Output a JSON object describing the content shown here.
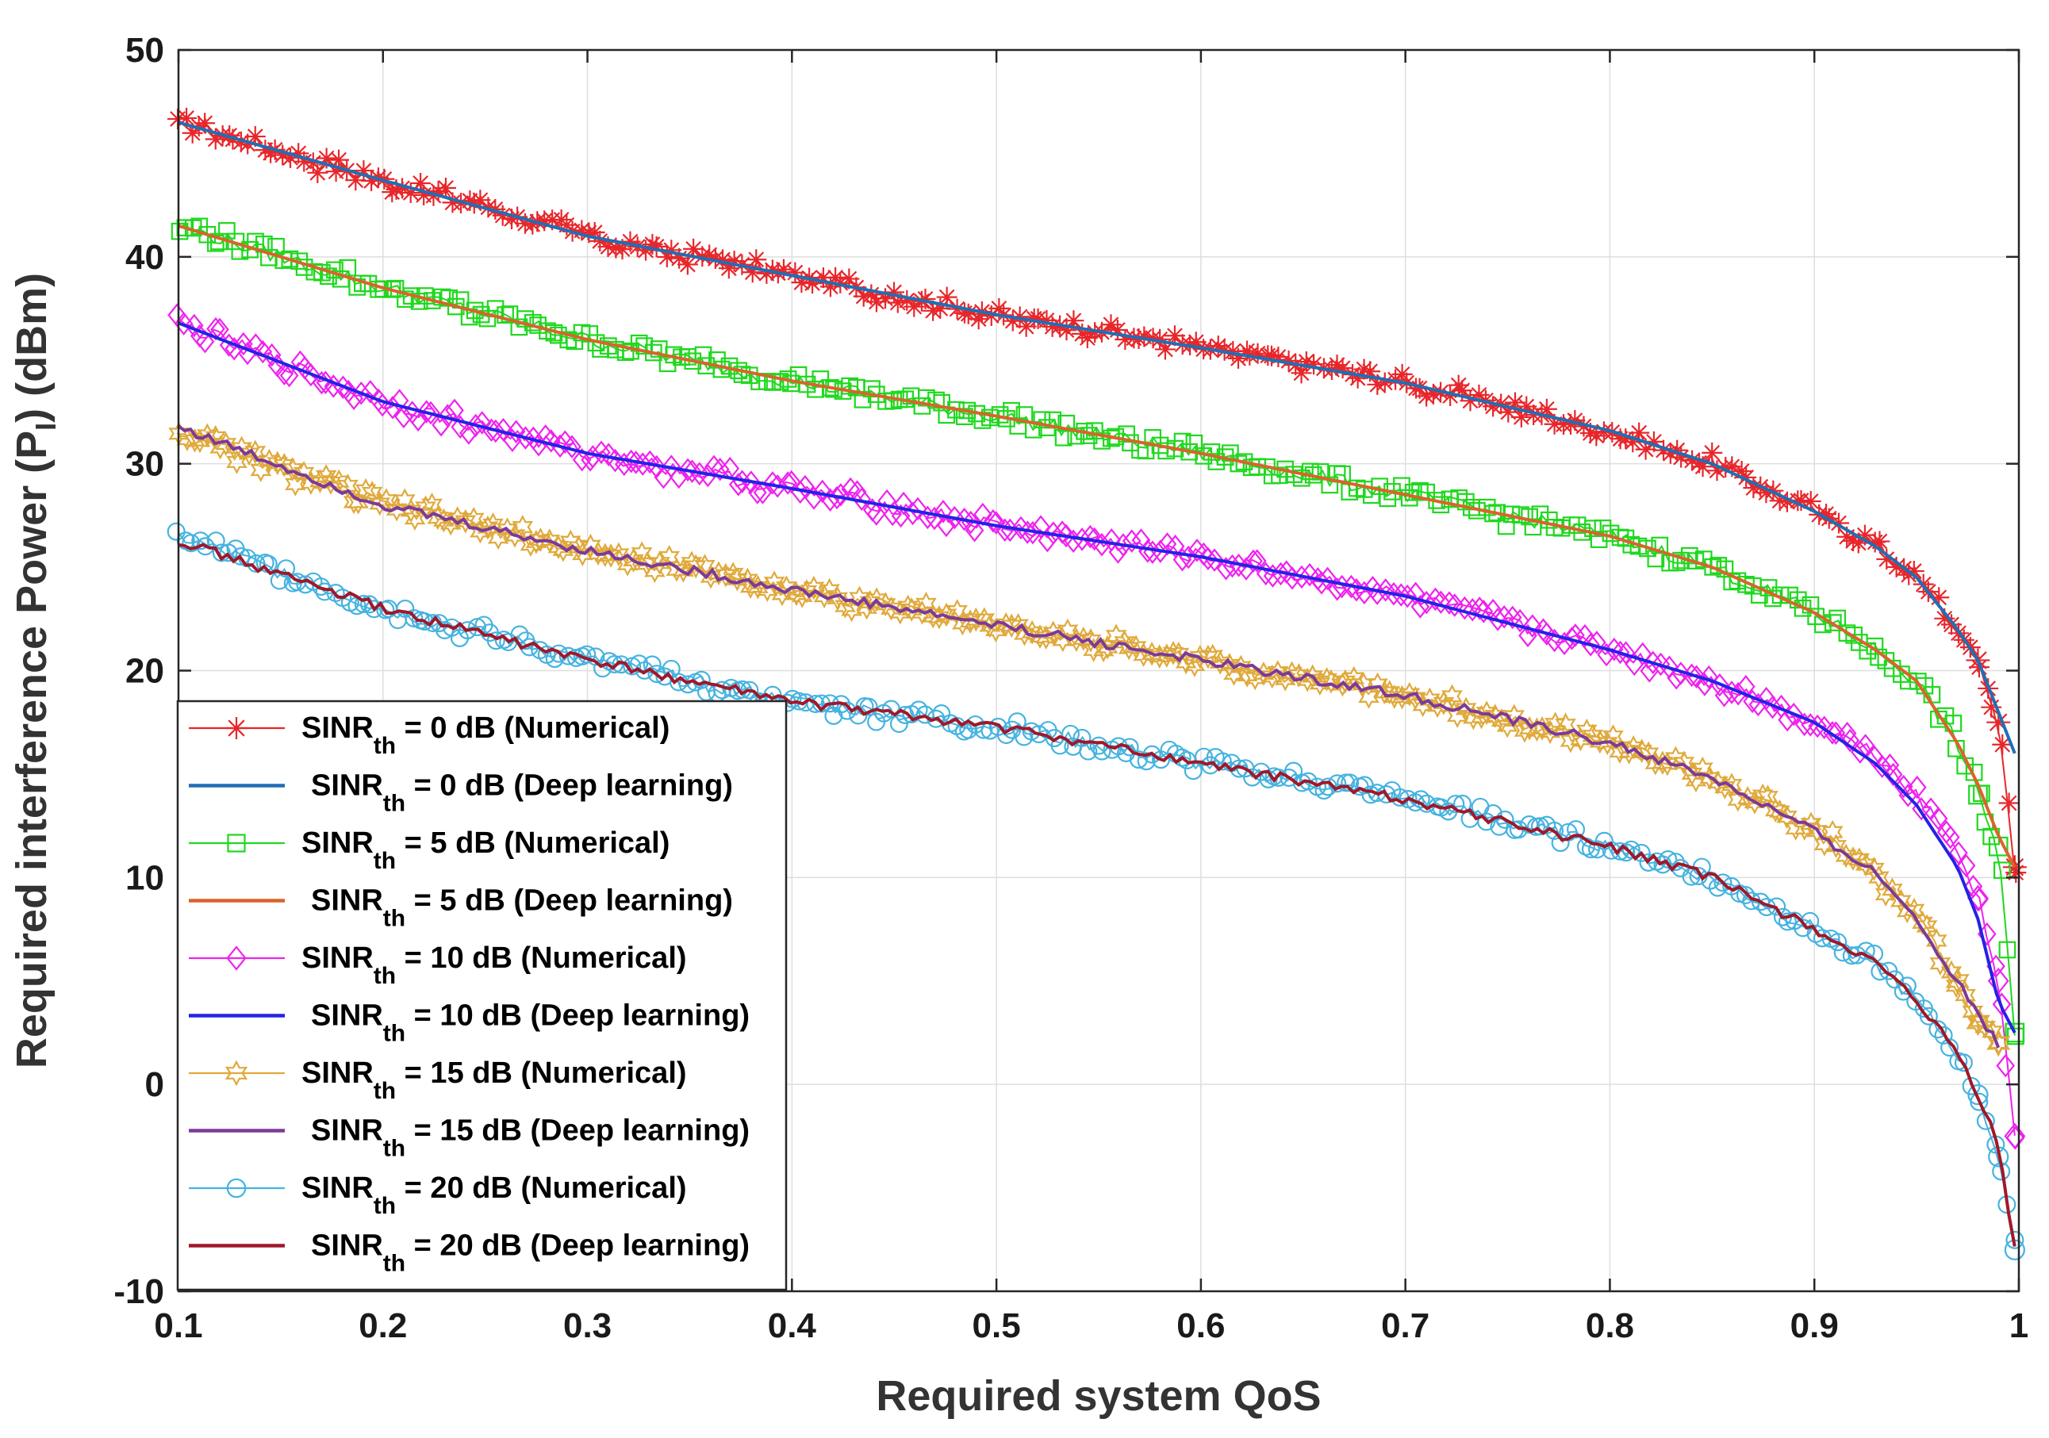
{
  "chart_data": {
    "type": "line",
    "title": "",
    "xlabel": "Required system QoS",
    "ylabel": {
      "prefix": "Required interference Power (P",
      "sub": "I",
      "suffix": ") (dBm)"
    },
    "xlim": [
      0.1,
      1.0
    ],
    "ylim": [
      -10,
      50
    ],
    "xticks": [
      0.1,
      0.2,
      0.3,
      0.4,
      0.5,
      0.6,
      0.7,
      0.8,
      0.9,
      1.0
    ],
    "xtick_labels": [
      "0.1",
      "0.2",
      "0.3",
      "0.4",
      "0.5",
      "0.6",
      "0.7",
      "0.8",
      "0.9",
      "1"
    ],
    "yticks": [
      -10,
      0,
      10,
      20,
      30,
      40,
      50
    ],
    "ytick_labels": [
      "-10",
      "0",
      "10",
      "20",
      "30",
      "40",
      "50"
    ],
    "grid": true,
    "legend_position": "bottom-left",
    "series": [
      {
        "name": "SINR_th = 0 dB (Numerical)",
        "legend": {
          "pre": "SINR",
          "sub": "th",
          "post": " = 0 dB (Numerical)"
        },
        "color": "#e8262a",
        "marker": "star",
        "style": "numerical",
        "x": [
          0.1,
          0.2,
          0.3,
          0.4,
          0.5,
          0.6,
          0.7,
          0.8,
          0.85,
          0.9,
          0.93,
          0.95,
          0.97,
          0.98,
          0.99,
          0.998
        ],
        "y": [
          46.5,
          43.7,
          41.0,
          39.1,
          37.2,
          35.6,
          33.9,
          31.6,
          30.0,
          27.7,
          26.0,
          24.5,
          22.0,
          20.5,
          17.5,
          10.5
        ]
      },
      {
        "name": "SINR_th = 0 dB (Deep learning)",
        "legend": {
          "pre": "SINR",
          "sub": "th",
          "post": " = 0 dB (Deep learning)"
        },
        "color": "#1f6fb5",
        "marker": "none",
        "style": "deep",
        "x": [
          0.1,
          0.2,
          0.3,
          0.4,
          0.5,
          0.6,
          0.7,
          0.8,
          0.85,
          0.9,
          0.93,
          0.95,
          0.97,
          0.98,
          0.99,
          0.998
        ],
        "y": [
          46.5,
          43.7,
          41.0,
          39.1,
          37.2,
          35.6,
          33.9,
          31.6,
          30.0,
          27.7,
          26.0,
          24.5,
          22.0,
          20.5,
          18.0,
          16.0
        ]
      },
      {
        "name": "SINR_th = 5 dB (Numerical)",
        "legend": {
          "pre": "SINR",
          "sub": "th",
          "post": " = 5 dB (Numerical)"
        },
        "color": "#1fd81f",
        "marker": "square",
        "style": "numerical",
        "x": [
          0.1,
          0.2,
          0.3,
          0.4,
          0.5,
          0.6,
          0.7,
          0.8,
          0.85,
          0.9,
          0.93,
          0.95,
          0.97,
          0.98,
          0.99,
          0.998
        ],
        "y": [
          41.5,
          38.5,
          36.0,
          34.0,
          32.3,
          30.5,
          28.5,
          26.5,
          25.0,
          22.8,
          21.0,
          19.5,
          16.5,
          14.0,
          11.5,
          2.5
        ]
      },
      {
        "name": "SINR_th = 5 dB (Deep learning)",
        "legend": {
          "pre": "SINR",
          "sub": "th",
          "post": " = 5 dB (Deep learning)"
        },
        "color": "#d9642b",
        "marker": "none",
        "style": "deep",
        "x": [
          0.1,
          0.2,
          0.3,
          0.4,
          0.5,
          0.6,
          0.7,
          0.8,
          0.85,
          0.9,
          0.93,
          0.95,
          0.97,
          0.98,
          0.99,
          0.998
        ],
        "y": [
          41.5,
          38.5,
          36.0,
          34.0,
          32.3,
          30.5,
          28.5,
          26.5,
          25.0,
          22.8,
          21.0,
          19.5,
          16.5,
          14.5,
          12.0,
          10.5
        ]
      },
      {
        "name": "SINR_th = 10 dB (Numerical)",
        "legend": {
          "pre": "SINR",
          "sub": "th",
          "post": " = 10 dB (Numerical)"
        },
        "color": "#ee22ee",
        "marker": "diamond",
        "style": "numerical",
        "x": [
          0.1,
          0.2,
          0.3,
          0.4,
          0.5,
          0.6,
          0.7,
          0.8,
          0.85,
          0.9,
          0.93,
          0.95,
          0.97,
          0.98,
          0.99,
          0.998
        ],
        "y": [
          36.8,
          33.0,
          30.5,
          28.8,
          27.0,
          25.5,
          23.6,
          21.0,
          19.5,
          17.5,
          16.0,
          14.0,
          11.5,
          9.0,
          5.0,
          -2.5
        ]
      },
      {
        "name": "SINR_th = 10 dB (Deep learning)",
        "legend": {
          "pre": "SINR",
          "sub": "th",
          "post": " = 10 dB (Deep learning)"
        },
        "color": "#2323e6",
        "marker": "none",
        "style": "deep",
        "x": [
          0.1,
          0.2,
          0.3,
          0.4,
          0.5,
          0.6,
          0.7,
          0.8,
          0.85,
          0.9,
          0.93,
          0.95,
          0.97,
          0.98,
          0.99,
          0.998
        ],
        "y": [
          36.8,
          33.0,
          30.5,
          28.8,
          27.0,
          25.5,
          23.6,
          21.0,
          19.5,
          17.5,
          15.5,
          13.5,
          10.5,
          8.0,
          4.0,
          2.5
        ]
      },
      {
        "name": "SINR_th = 15 dB (Numerical)",
        "legend": {
          "pre": "SINR",
          "sub": "th",
          "post": " = 15 dB (Numerical)"
        },
        "color": "#e0a93a",
        "marker": "hexagram",
        "style": "numerical",
        "x": [
          0.1,
          0.2,
          0.3,
          0.4,
          0.5,
          0.6,
          0.7,
          0.8,
          0.85,
          0.9,
          0.93,
          0.95,
          0.97,
          0.98,
          0.99
        ],
        "y": [
          31.5,
          28.0,
          25.8,
          23.9,
          22.2,
          20.5,
          18.8,
          16.5,
          14.8,
          12.2,
          10.2,
          8.0,
          5.0,
          3.0,
          2.0
        ]
      },
      {
        "name": "SINR_th = 15 dB (Deep learning)",
        "legend": {
          "pre": "SINR",
          "sub": "th",
          "post": " = 15 dB (Deep learning)"
        },
        "color": "#7d3a98",
        "marker": "none",
        "style": "deep",
        "x": [
          0.1,
          0.2,
          0.3,
          0.4,
          0.5,
          0.6,
          0.7,
          0.8,
          0.85,
          0.9,
          0.93,
          0.95,
          0.97,
          0.98,
          0.99
        ],
        "y": [
          31.8,
          28.0,
          25.8,
          23.9,
          22.2,
          20.5,
          18.8,
          16.5,
          14.8,
          12.2,
          10.2,
          8.0,
          5.0,
          3.5,
          1.8
        ]
      },
      {
        "name": "SINR_th = 20 dB (Numerical)",
        "legend": {
          "pre": "SINR",
          "sub": "th",
          "post": " = 20 dB (Numerical)"
        },
        "color": "#45b3e0",
        "marker": "circle",
        "style": "numerical",
        "x": [
          0.1,
          0.2,
          0.3,
          0.4,
          0.5,
          0.6,
          0.7,
          0.8,
          0.85,
          0.9,
          0.93,
          0.95,
          0.97,
          0.98,
          0.99,
          0.998
        ],
        "y": [
          26.5,
          23.0,
          20.5,
          18.5,
          17.3,
          15.5,
          13.8,
          11.5,
          10.0,
          7.5,
          5.8,
          4.0,
          1.5,
          -0.5,
          -3.5,
          -8.0
        ]
      },
      {
        "name": "SINR_th = 20 dB (Deep learning)",
        "legend": {
          "pre": "SINR",
          "sub": "th",
          "post": " = 20 dB (Deep learning)"
        },
        "color": "#a0182b",
        "marker": "none",
        "style": "deep",
        "x": [
          0.1,
          0.2,
          0.3,
          0.4,
          0.5,
          0.6,
          0.7,
          0.8,
          0.85,
          0.9,
          0.93,
          0.95,
          0.97,
          0.98,
          0.99,
          0.998
        ],
        "y": [
          26.3,
          23.0,
          20.5,
          18.5,
          17.3,
          15.5,
          13.8,
          11.5,
          10.0,
          7.5,
          5.8,
          4.0,
          1.5,
          -0.5,
          -3.0,
          -8.0
        ]
      }
    ]
  }
}
